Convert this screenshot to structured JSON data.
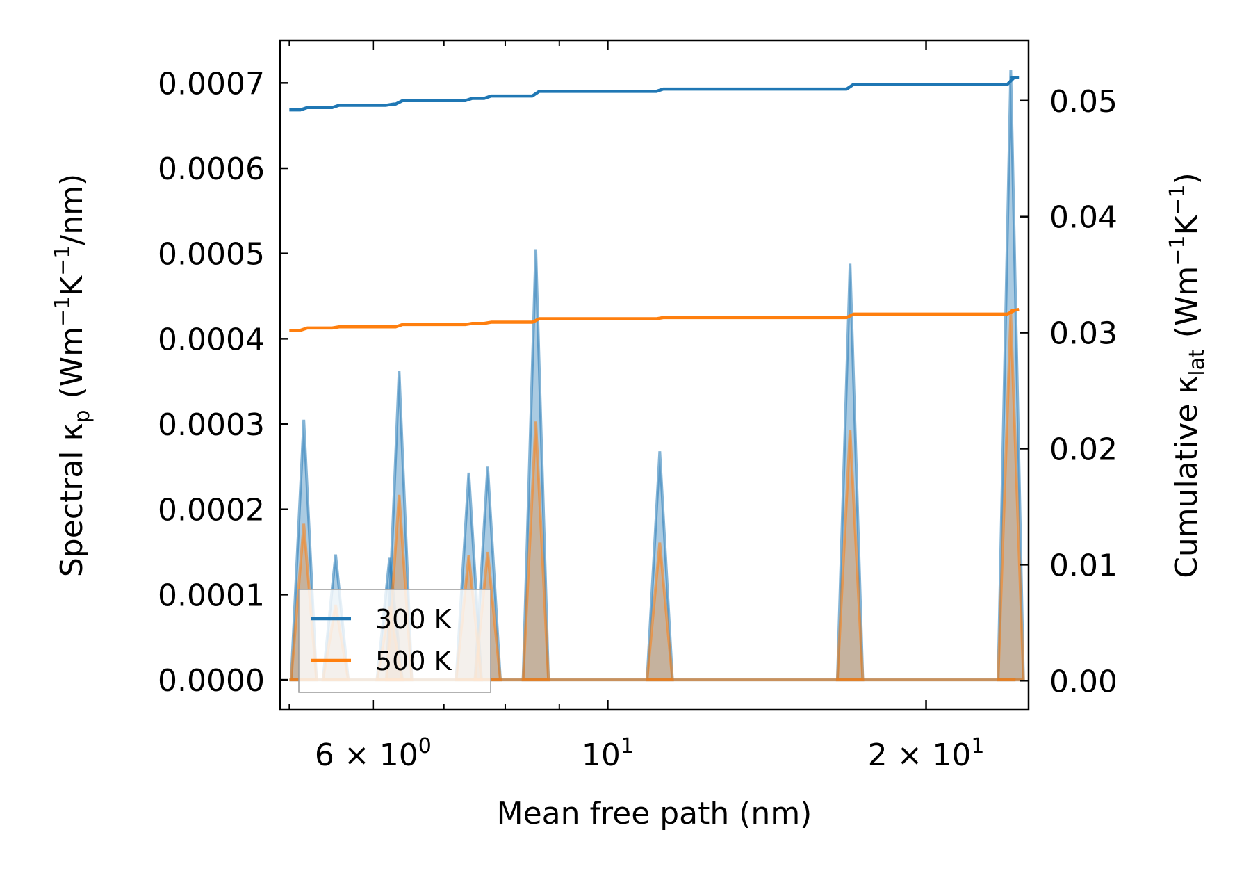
{
  "chart_data": {
    "type": "line",
    "title": "",
    "xlabel": "Mean free path (nm)",
    "ylabel": "Spectral κ",
    "ylabel_sub": "p",
    "ylabel_units_open": "(Wm",
    "ylabel_units_k": "K",
    "ylabel_units_close": "/nm)",
    "y2label": "Cumulative κ",
    "y2label_sub": "lat",
    "y2label_units_open": "(Wm",
    "y2label_units_k": "K",
    "y2label_units_close": ")",
    "unit_exponent": "−1",
    "xscale": "log",
    "xlim": [
      4.9,
      25.0
    ],
    "ylim": [
      -3.5e-05,
      0.00075
    ],
    "y2lim": [
      -0.0025,
      0.0552
    ],
    "x_ticks": [
      {
        "value": 6,
        "mantissa": "6 × 10",
        "exponent": "0"
      },
      {
        "value": 10,
        "mantissa": "10",
        "exponent": "1"
      },
      {
        "value": 20,
        "mantissa": "2 × 10",
        "exponent": "1"
      }
    ],
    "x_minor_ticks": [
      5,
      7,
      8,
      9
    ],
    "y_ticks": [
      {
        "value": 0.0,
        "label": "0.0000"
      },
      {
        "value": 0.0001,
        "label": "0.0001"
      },
      {
        "value": 0.0002,
        "label": "0.0002"
      },
      {
        "value": 0.0003,
        "label": "0.0003"
      },
      {
        "value": 0.0004,
        "label": "0.0004"
      },
      {
        "value": 0.0005,
        "label": "0.0005"
      },
      {
        "value": 0.0006,
        "label": "0.0006"
      },
      {
        "value": 0.0007,
        "label": "0.0007"
      }
    ],
    "y2_ticks": [
      {
        "value": 0.0,
        "label": "0.00"
      },
      {
        "value": 0.01,
        "label": "0.01"
      },
      {
        "value": 0.02,
        "label": "0.02"
      },
      {
        "value": 0.03,
        "label": "0.03"
      },
      {
        "value": 0.04,
        "label": "0.04"
      },
      {
        "value": 0.05,
        "label": "0.05"
      }
    ],
    "peaks_x": [
      5.16,
      5.53,
      6.22,
      6.35,
      7.39,
      7.7,
      8.55,
      11.2,
      16.95,
      24.05
    ],
    "series": [
      {
        "name": "300 K",
        "color": "#1f77b4",
        "spectral_peaks": [
          0.000305,
          0.000147,
          0.000143,
          0.000362,
          0.000243,
          0.00025,
          0.000505,
          0.000268,
          0.000488,
          0.000715
        ],
        "cumulative": {
          "x": [
            5.0,
            5.16,
            5.53,
            6.22,
            6.35,
            7.39,
            7.7,
            8.55,
            11.2,
            16.95,
            24.05,
            24.3
          ],
          "y": [
            0.0492,
            0.0494,
            0.0496,
            0.0497,
            0.05,
            0.0502,
            0.0504,
            0.0508,
            0.051,
            0.0514,
            0.052,
            0.052
          ]
        }
      },
      {
        "name": "500 K",
        "color": "#ff7f0e",
        "spectral_peaks": [
          0.000183,
          8.8e-05,
          8.6e-05,
          0.000217,
          0.000146,
          0.00015,
          0.000303,
          0.000161,
          0.000293,
          0.000429
        ],
        "cumulative": {
          "x": [
            5.0,
            5.16,
            5.53,
            6.22,
            6.35,
            7.39,
            7.7,
            8.55,
            11.2,
            16.95,
            24.05,
            24.3
          ],
          "y": [
            0.0302,
            0.0304,
            0.0305,
            0.0305,
            0.0307,
            0.0308,
            0.0309,
            0.0312,
            0.0313,
            0.0316,
            0.0319,
            0.032
          ]
        }
      }
    ],
    "legend": {
      "position": "lower-left",
      "entries": [
        "300 K",
        "500 K"
      ]
    }
  }
}
